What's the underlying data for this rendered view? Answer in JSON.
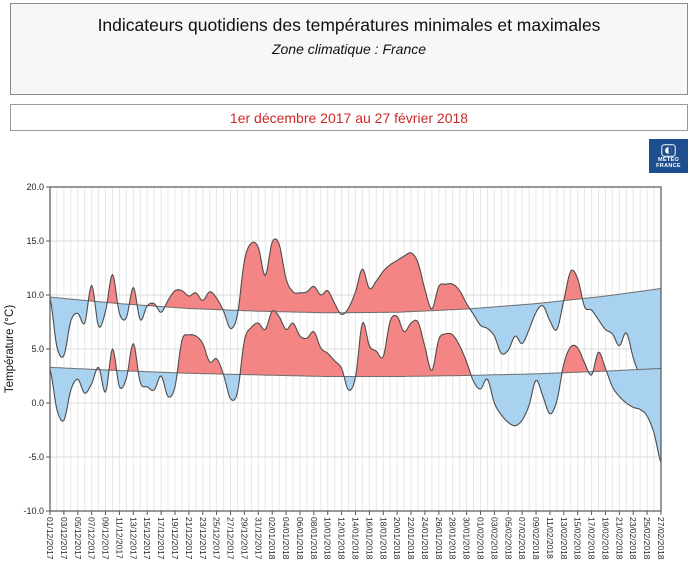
{
  "header": {
    "title": "Indicateurs quotidiens des températures minimales et maximales",
    "subtitle": "Zone climatique : France"
  },
  "banner": {
    "period": "1er décembre 2017 au 27 février 2018",
    "text_color": "#cc2929"
  },
  "logo": {
    "line1": "MÉTÉO",
    "line2": "FRANCE",
    "bg": "#1f4e8f"
  },
  "chart_data": {
    "type": "area",
    "title": "",
    "xlabel": "",
    "ylabel": "Température (°C)",
    "ylim": [
      -10,
      20
    ],
    "yticks": [
      "20.0",
      "15.0",
      "10.0",
      "5.0",
      "0.0",
      "-5.0",
      "-10.0"
    ],
    "grid": true,
    "n_days": 89,
    "days_per_tick": 2,
    "x_tick_labels": [
      "01/12/2017",
      "03/12/2017",
      "05/12/2017",
      "07/12/2017",
      "09/12/2017",
      "11/12/2017",
      "13/12/2017",
      "15/12/2017",
      "17/12/2017",
      "19/12/2017",
      "21/12/2017",
      "23/12/2017",
      "25/12/2017",
      "27/12/2017",
      "29/12/2017",
      "31/12/2017",
      "02/01/2018",
      "04/01/2018",
      "06/01/2018",
      "08/01/2018",
      "10/01/2018",
      "12/01/2018",
      "14/01/2018",
      "16/01/2018",
      "18/01/2018",
      "20/01/2018",
      "22/01/2018",
      "24/01/2018",
      "26/01/2018",
      "28/01/2018",
      "30/01/2018",
      "01/02/2018",
      "03/02/2018",
      "05/02/2018",
      "07/02/2018",
      "09/02/2018",
      "11/02/2018",
      "13/02/2018",
      "15/02/2018",
      "17/02/2018",
      "19/02/2018",
      "21/02/2018",
      "23/02/2018",
      "25/02/2018",
      "27/02/2018"
    ],
    "series": [
      {
        "name": "temperature_maximale",
        "values": [
          9.7,
          5.2,
          4.4,
          7.6,
          8.3,
          7.4,
          10.9,
          7.1,
          8.5,
          11.9,
          8.3,
          7.9,
          10.7,
          7.7,
          9.0,
          9.2,
          8.4,
          9.5,
          10.4,
          10.4,
          9.9,
          10.2,
          9.5,
          10.3,
          9.7,
          8.5,
          6.9,
          8.2,
          13.2,
          14.8,
          14.4,
          11.8,
          14.9,
          14.7,
          11.5,
          10.3,
          10.2,
          10.3,
          10.8,
          10.0,
          10.4,
          9.2,
          8.2,
          8.8,
          10.3,
          12.4,
          10.6,
          11.3,
          12.2,
          12.8,
          13.2,
          13.6,
          13.9,
          13.0,
          10.5,
          8.7,
          10.8,
          11.0,
          11.0,
          10.4,
          9.2,
          8.2,
          7.2,
          6.9,
          6.2,
          4.6,
          4.9,
          6.2,
          5.5,
          6.8,
          8.4,
          9.0,
          7.6,
          6.8,
          9.5,
          12.2,
          11.5,
          8.9,
          8.6,
          7.7,
          6.8,
          6.4,
          5.3,
          6.5,
          4.2,
          2.4,
          1.0,
          0.5,
          0.3
        ]
      },
      {
        "name": "temperature_minimale",
        "values": [
          3.1,
          -0.6,
          -1.6,
          1.2,
          2.2,
          0.9,
          1.8,
          3.3,
          1.0,
          5.0,
          1.5,
          2.3,
          5.5,
          1.9,
          1.5,
          1.2,
          2.5,
          0.6,
          1.5,
          5.8,
          6.3,
          6.2,
          5.5,
          3.8,
          4.1,
          2.6,
          0.4,
          1.0,
          5.8,
          7.0,
          7.4,
          6.8,
          8.5,
          8.0,
          6.8,
          7.4,
          6.2,
          6.0,
          6.6,
          5.1,
          4.6,
          3.9,
          3.2,
          1.2,
          2.4,
          7.4,
          5.3,
          4.8,
          4.3,
          7.6,
          8.0,
          6.6,
          7.4,
          7.5,
          5.2,
          3.0,
          5.9,
          6.4,
          6.3,
          5.3,
          3.8,
          2.0,
          1.3,
          2.2,
          0.0,
          -1.1,
          -1.8,
          -2.1,
          -1.6,
          -0.2,
          2.1,
          0.6,
          -1.0,
          0.2,
          3.6,
          5.2,
          5.1,
          3.7,
          2.6,
          4.7,
          3.2,
          1.5,
          0.6,
          0.0,
          -0.4,
          -0.6,
          -1.2,
          -2.8,
          -5.5
        ]
      },
      {
        "name": "normale_maximale",
        "control_points": [
          [
            0,
            9.8
          ],
          [
            10,
            9.2
          ],
          [
            20,
            8.75
          ],
          [
            30,
            8.5
          ],
          [
            40,
            8.35
          ],
          [
            50,
            8.4
          ],
          [
            60,
            8.7
          ],
          [
            70,
            9.2
          ],
          [
            80,
            9.9
          ],
          [
            88,
            10.6
          ]
        ]
      },
      {
        "name": "normale_minimale",
        "control_points": [
          [
            0,
            3.3
          ],
          [
            10,
            3.0
          ],
          [
            20,
            2.75
          ],
          [
            30,
            2.6
          ],
          [
            40,
            2.45
          ],
          [
            50,
            2.45
          ],
          [
            60,
            2.55
          ],
          [
            70,
            2.7
          ],
          [
            80,
            2.95
          ],
          [
            88,
            3.2
          ]
        ]
      }
    ],
    "colors": {
      "above_normal": "#f48585",
      "below_normal": "#a8d2f0",
      "curve": "#4d4d4d",
      "normal_line": "#6e6e6e",
      "grid_v": "#e7e7e7",
      "grid_h": "#dedede",
      "axis": "#555555",
      "tick_text": "#222222"
    }
  }
}
